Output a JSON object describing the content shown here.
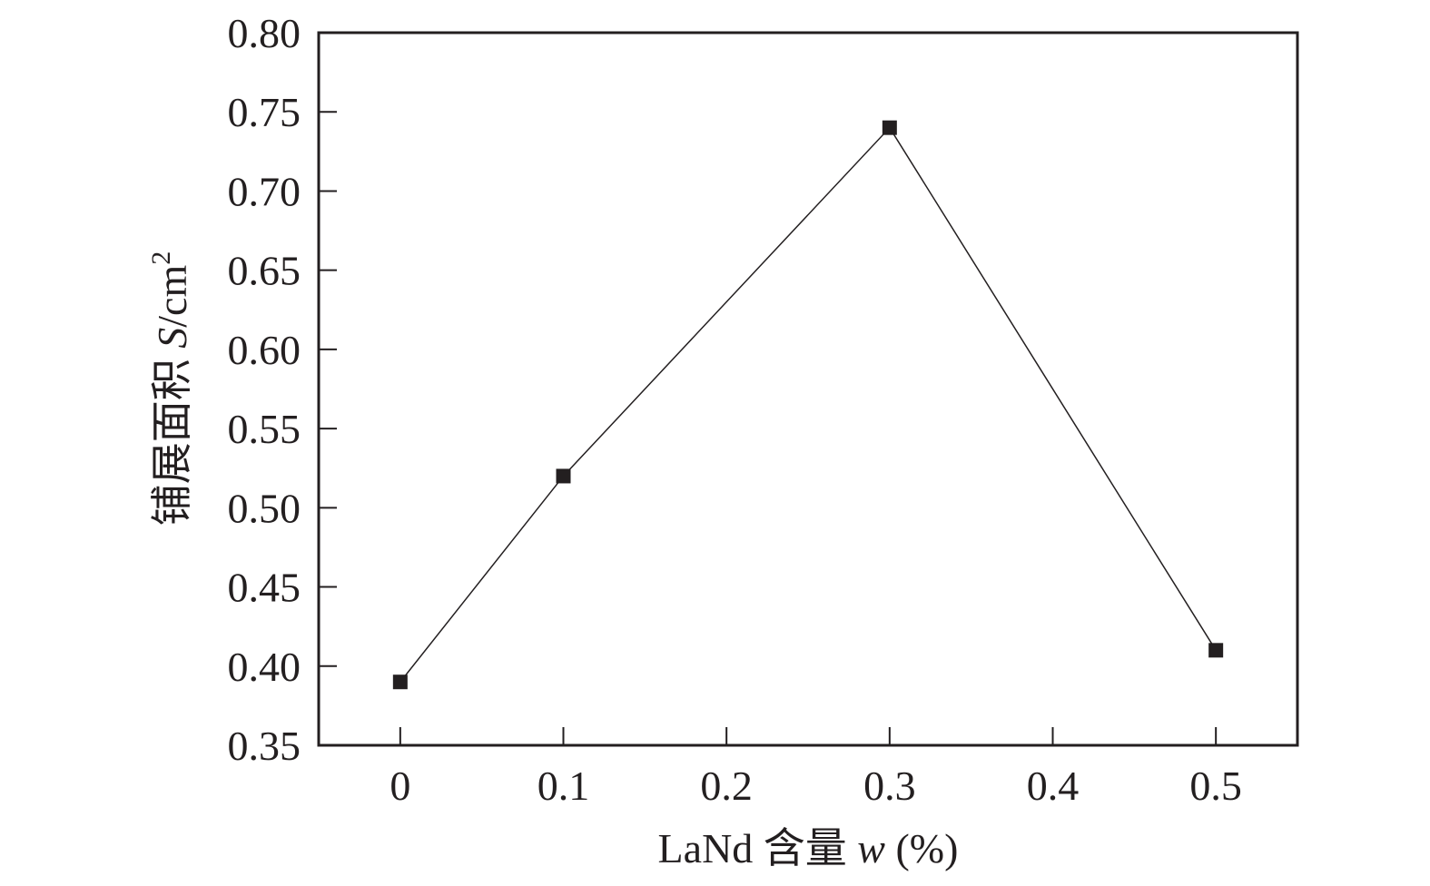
{
  "chart_data": {
    "type": "line",
    "x": [
      0,
      0.1,
      0.3,
      0.5
    ],
    "series": [
      {
        "values": [
          0.39,
          0.52,
          0.74,
          0.41
        ],
        "marker": "square",
        "color": "#231f20"
      }
    ],
    "xlabel": {
      "prefix": "LaNd 含量 ",
      "variable": "w",
      "suffix": " (%)"
    },
    "ylabel": {
      "prefix": "铺展面积 ",
      "variable": "S",
      "suffix": "/cm",
      "superscript": "2"
    },
    "xlim": [
      -0.05,
      0.55
    ],
    "ylim": [
      0.35,
      0.8
    ],
    "xticks": [
      0,
      0.1,
      0.2,
      0.3,
      0.4,
      0.5
    ],
    "xtick_labels": [
      "0",
      "0.1",
      "0.2",
      "0.3",
      "0.4",
      "0.5"
    ],
    "yticks": [
      0.35,
      0.4,
      0.45,
      0.5,
      0.55,
      0.6,
      0.65,
      0.7,
      0.75,
      0.8
    ],
    "ytick_labels": [
      "0.35",
      "0.40",
      "0.45",
      "0.50",
      "0.55",
      "0.60",
      "0.65",
      "0.70",
      "0.75",
      "0.80"
    ],
    "grid": false,
    "legend": "none"
  }
}
